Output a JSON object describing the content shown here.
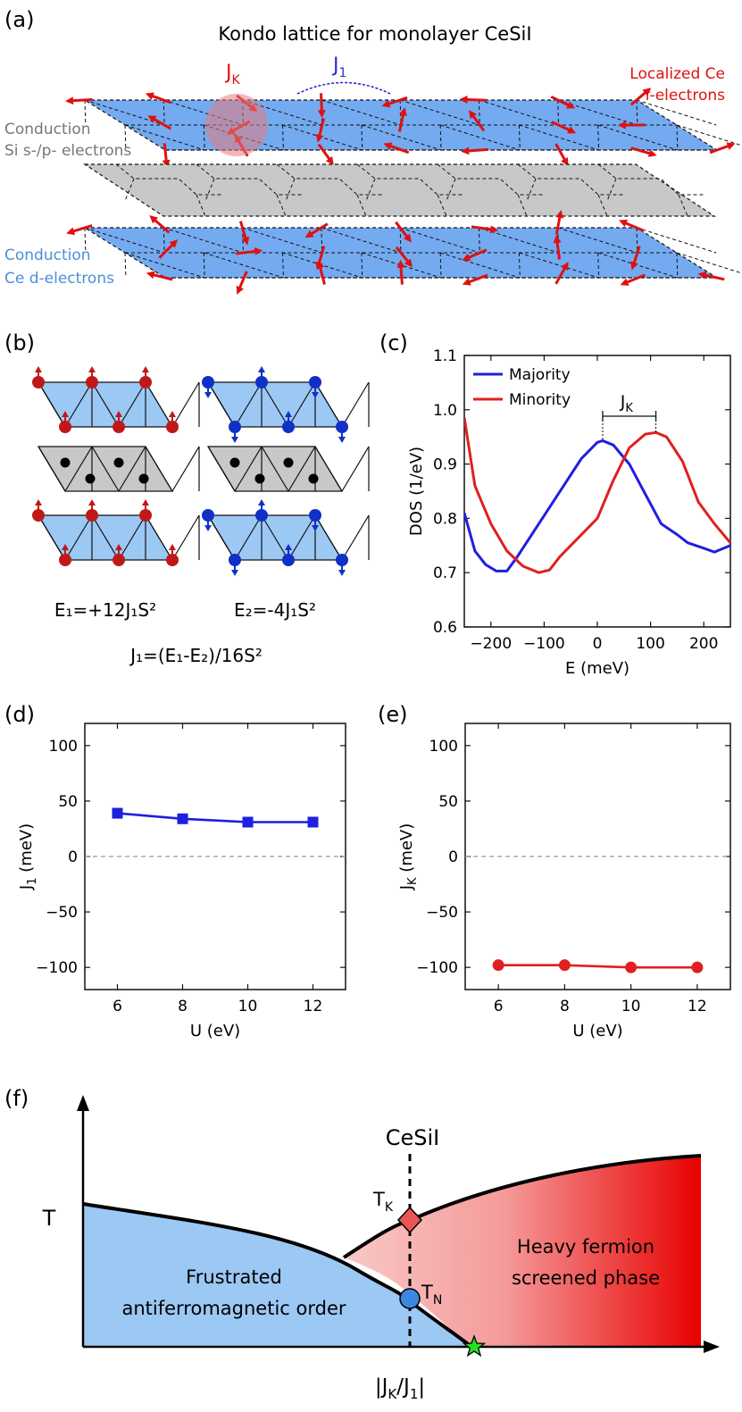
{
  "panels": {
    "a": {
      "label": "(a)",
      "title": "Kondo lattice for monolayer CeSiI",
      "jk": "J",
      "jk_sub": "K",
      "j1": "J",
      "j1_sub": "1",
      "localized_1": "Localized Ce",
      "localized_2": "f-electrons",
      "si_1": "Conduction",
      "si_2": "Si s-/p- electrons",
      "ce_1": "Conduction",
      "ce_2": "Ce d-electrons"
    },
    "b": {
      "label": "(b)",
      "e1": "E₁=+12J₁S²",
      "e2": "E₂=-4J₁S²",
      "j1": "J₁=(E₁-E₂)/16S²"
    },
    "c": {
      "label": "(c)"
    },
    "d": {
      "label": "(d)"
    },
    "e": {
      "label": "(e)"
    },
    "f": {
      "label": "(f)",
      "cesii": "CeSiI",
      "t_axis": "T",
      "x_axis": "|J_K/J_1|",
      "tk": "T",
      "tk_sub": "K",
      "tn": "T",
      "tn_sub": "N",
      "afm_1": "Frustrated",
      "afm_2": "antiferromagnetic order",
      "hf_1": "Heavy fermion",
      "hf_2": "screened phase"
    }
  },
  "colors": {
    "majority": "#1f1fe0",
    "minority": "#e01f1f",
    "layer_blue": "#74aaf0",
    "layer_gray": "#c8c8c8",
    "spin_red": "#e01010"
  },
  "chart_data": [
    {
      "id": "c",
      "type": "line",
      "xlabel": "E (meV)",
      "ylabel": "DOS (1/eV)",
      "xlim": [
        -250,
        250
      ],
      "ylim": [
        0.6,
        1.1
      ],
      "xticks": [
        -200,
        -100,
        0,
        100,
        200
      ],
      "yticks": [
        0.6,
        0.7,
        0.8,
        0.9,
        1.0,
        1.1
      ],
      "legend": "top-left",
      "annotation": "J_K",
      "series": [
        {
          "name": "Majority",
          "x": [
            -250,
            -230,
            -210,
            -190,
            -170,
            -150,
            -120,
            -90,
            -60,
            -30,
            0,
            10,
            30,
            60,
            90,
            120,
            150,
            170,
            200,
            220,
            250
          ],
          "y": [
            0.81,
            0.74,
            0.715,
            0.703,
            0.703,
            0.73,
            0.775,
            0.82,
            0.865,
            0.91,
            0.94,
            0.943,
            0.935,
            0.9,
            0.845,
            0.79,
            0.77,
            0.755,
            0.745,
            0.738,
            0.75
          ]
        },
        {
          "name": "Minority",
          "x": [
            -250,
            -230,
            -200,
            -170,
            -140,
            -110,
            -90,
            -70,
            -40,
            0,
            30,
            60,
            90,
            110,
            130,
            160,
            190,
            220,
            250
          ],
          "y": [
            0.985,
            0.86,
            0.79,
            0.74,
            0.712,
            0.7,
            0.705,
            0.73,
            0.76,
            0.8,
            0.87,
            0.93,
            0.955,
            0.958,
            0.95,
            0.905,
            0.83,
            0.79,
            0.755
          ]
        }
      ]
    },
    {
      "id": "d",
      "type": "line",
      "xlabel": "U (eV)",
      "ylabel": "J_1 (meV)",
      "xlim": [
        5,
        13
      ],
      "ylim": [
        -120,
        120
      ],
      "xticks": [
        6,
        8,
        10,
        12
      ],
      "yticks": [
        100,
        50,
        0,
        -50,
        -100
      ],
      "series": [
        {
          "x": [
            6,
            8,
            10,
            12
          ],
          "y": [
            39,
            34,
            31,
            31
          ]
        }
      ]
    },
    {
      "id": "e",
      "type": "line",
      "xlabel": "U (eV)",
      "ylabel": "J_K (meV)",
      "xlim": [
        5,
        13
      ],
      "ylim": [
        -120,
        120
      ],
      "xticks": [
        6,
        8,
        10,
        12
      ],
      "yticks": [
        100,
        50,
        0,
        -50,
        -100
      ],
      "series": [
        {
          "x": [
            6,
            8,
            10,
            12
          ],
          "y": [
            -98,
            -98,
            -100,
            -100
          ]
        }
      ]
    }
  ]
}
